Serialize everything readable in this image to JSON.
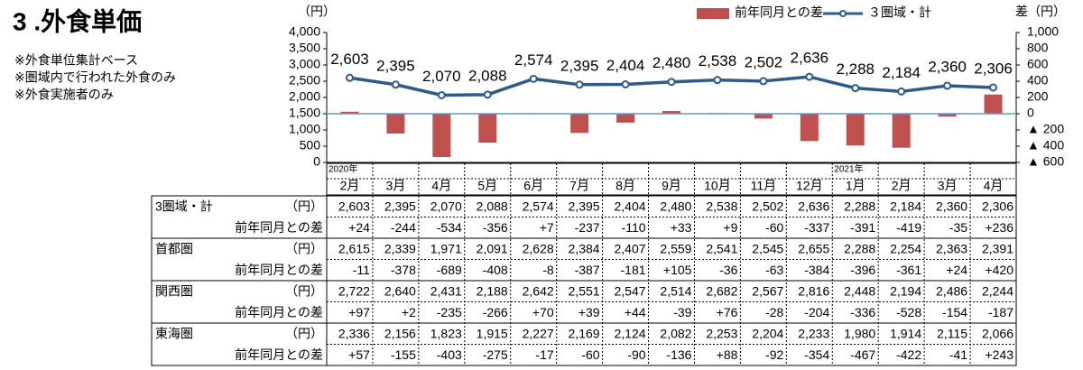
{
  "header": {
    "title": "3 .外食単価",
    "notes": [
      "※外食単位集計ベース",
      "※圏域内で行われた外食のみ",
      "※外食実施者のみ"
    ]
  },
  "chart_data": {
    "type": "combo",
    "y_label": "（円）",
    "y2_label": "差（円）",
    "categories": [
      "2月",
      "3月",
      "4月",
      "5月",
      "6月",
      "7月",
      "8月",
      "9月",
      "10月",
      "11月",
      "12月",
      "1月",
      "2月",
      "3月",
      "4月"
    ],
    "category_groups": [
      "2020年",
      null,
      null,
      null,
      null,
      null,
      null,
      null,
      null,
      null,
      null,
      "2021年",
      null,
      null,
      null
    ],
    "ylim": [
      0,
      4000
    ],
    "yticks": [
      0,
      500,
      {
        "value": 1000,
        "label": "1,000"
      },
      {
        "value": 1500,
        "label": "1,500"
      },
      {
        "value": 2000,
        "label": "2,000"
      },
      {
        "value": 2500,
        "label": "2,500"
      },
      {
        "value": 3000,
        "label": "3,000"
      },
      {
        "value": 3500,
        "label": "3,500"
      },
      {
        "value": 4000,
        "label": "4,000"
      }
    ],
    "y2lim": [
      -600,
      1000
    ],
    "y2ticks": [
      {
        "value": -600,
        "label": "▲ 600"
      },
      {
        "value": -400,
        "label": "▲ 400"
      },
      {
        "value": -200,
        "label": "▲ 200"
      },
      0,
      200,
      400,
      600,
      800,
      {
        "value": 1000,
        "label": "1,000"
      }
    ],
    "series": [
      {
        "name": "前年同月との差",
        "type": "bar",
        "axis": "y2",
        "color": "#c0504d",
        "values": [
          24,
          -244,
          -534,
          -356,
          7,
          -237,
          -110,
          33,
          9,
          -60,
          -337,
          -391,
          -419,
          -35,
          236
        ]
      },
      {
        "name": "３圏域・計",
        "type": "line",
        "color": "#2e5b8a",
        "values": [
          2603,
          2395,
          2070,
          2088,
          2574,
          2395,
          2404,
          2480,
          2538,
          2502,
          2636,
          2288,
          2184,
          2360,
          2306
        ],
        "value_labels": [
          "2,603",
          "2,395",
          "2,070",
          "2,088",
          "2,574",
          "2,395",
          "2,404",
          "2,480",
          "2,538",
          "2,502",
          "2,636",
          "2,288",
          "2,184",
          "2,360",
          "2,306"
        ]
      }
    ]
  },
  "table": {
    "rows": [
      {
        "label": "3圏域・計",
        "unit": "（円）",
        "values": [
          "2,603",
          "2,395",
          "2,070",
          "2,088",
          "2,574",
          "2,395",
          "2,404",
          "2,480",
          "2,538",
          "2,502",
          "2,636",
          "2,288",
          "2,184",
          "2,360",
          "2,306"
        ]
      },
      {
        "label": "前年同月との差",
        "values": [
          "+24",
          "-244",
          "-534",
          "-356",
          "+7",
          "-237",
          "-110",
          "+33",
          "+9",
          "-60",
          "-337",
          "-391",
          "-419",
          "-35",
          "+236"
        ]
      },
      {
        "label": "首都圏",
        "unit": "（円）",
        "values": [
          "2,615",
          "2,339",
          "1,971",
          "2,091",
          "2,628",
          "2,384",
          "2,407",
          "2,559",
          "2,541",
          "2,545",
          "2,655",
          "2,288",
          "2,254",
          "2,363",
          "2,391"
        ]
      },
      {
        "label": "前年同月との差",
        "values": [
          "-11",
          "-378",
          "-689",
          "-408",
          "-8",
          "-387",
          "-181",
          "+105",
          "-36",
          "-63",
          "-384",
          "-396",
          "-361",
          "+24",
          "+420"
        ]
      },
      {
        "label": "関西圏",
        "unit": "（円）",
        "values": [
          "2,722",
          "2,640",
          "2,431",
          "2,188",
          "2,642",
          "2,551",
          "2,547",
          "2,514",
          "2,682",
          "2,567",
          "2,816",
          "2,448",
          "2,194",
          "2,486",
          "2,244"
        ]
      },
      {
        "label": "前年同月との差",
        "values": [
          "+97",
          "+2",
          "-235",
          "-266",
          "+70",
          "+39",
          "+44",
          "-39",
          "+76",
          "-28",
          "-204",
          "-336",
          "-528",
          "-154",
          "-187"
        ]
      },
      {
        "label": "東海圏",
        "unit": "（円）",
        "values": [
          "2,336",
          "2,156",
          "1,823",
          "1,915",
          "2,227",
          "2,169",
          "2,124",
          "2,082",
          "2,253",
          "2,204",
          "2,233",
          "1,980",
          "1,914",
          "2,115",
          "2,066"
        ]
      },
      {
        "label": "前年同月との差",
        "values": [
          "+57",
          "-155",
          "-403",
          "-275",
          "-17",
          "-60",
          "-90",
          "-136",
          "+88",
          "-92",
          "-354",
          "-467",
          "-422",
          "-41",
          "+243"
        ]
      }
    ]
  }
}
